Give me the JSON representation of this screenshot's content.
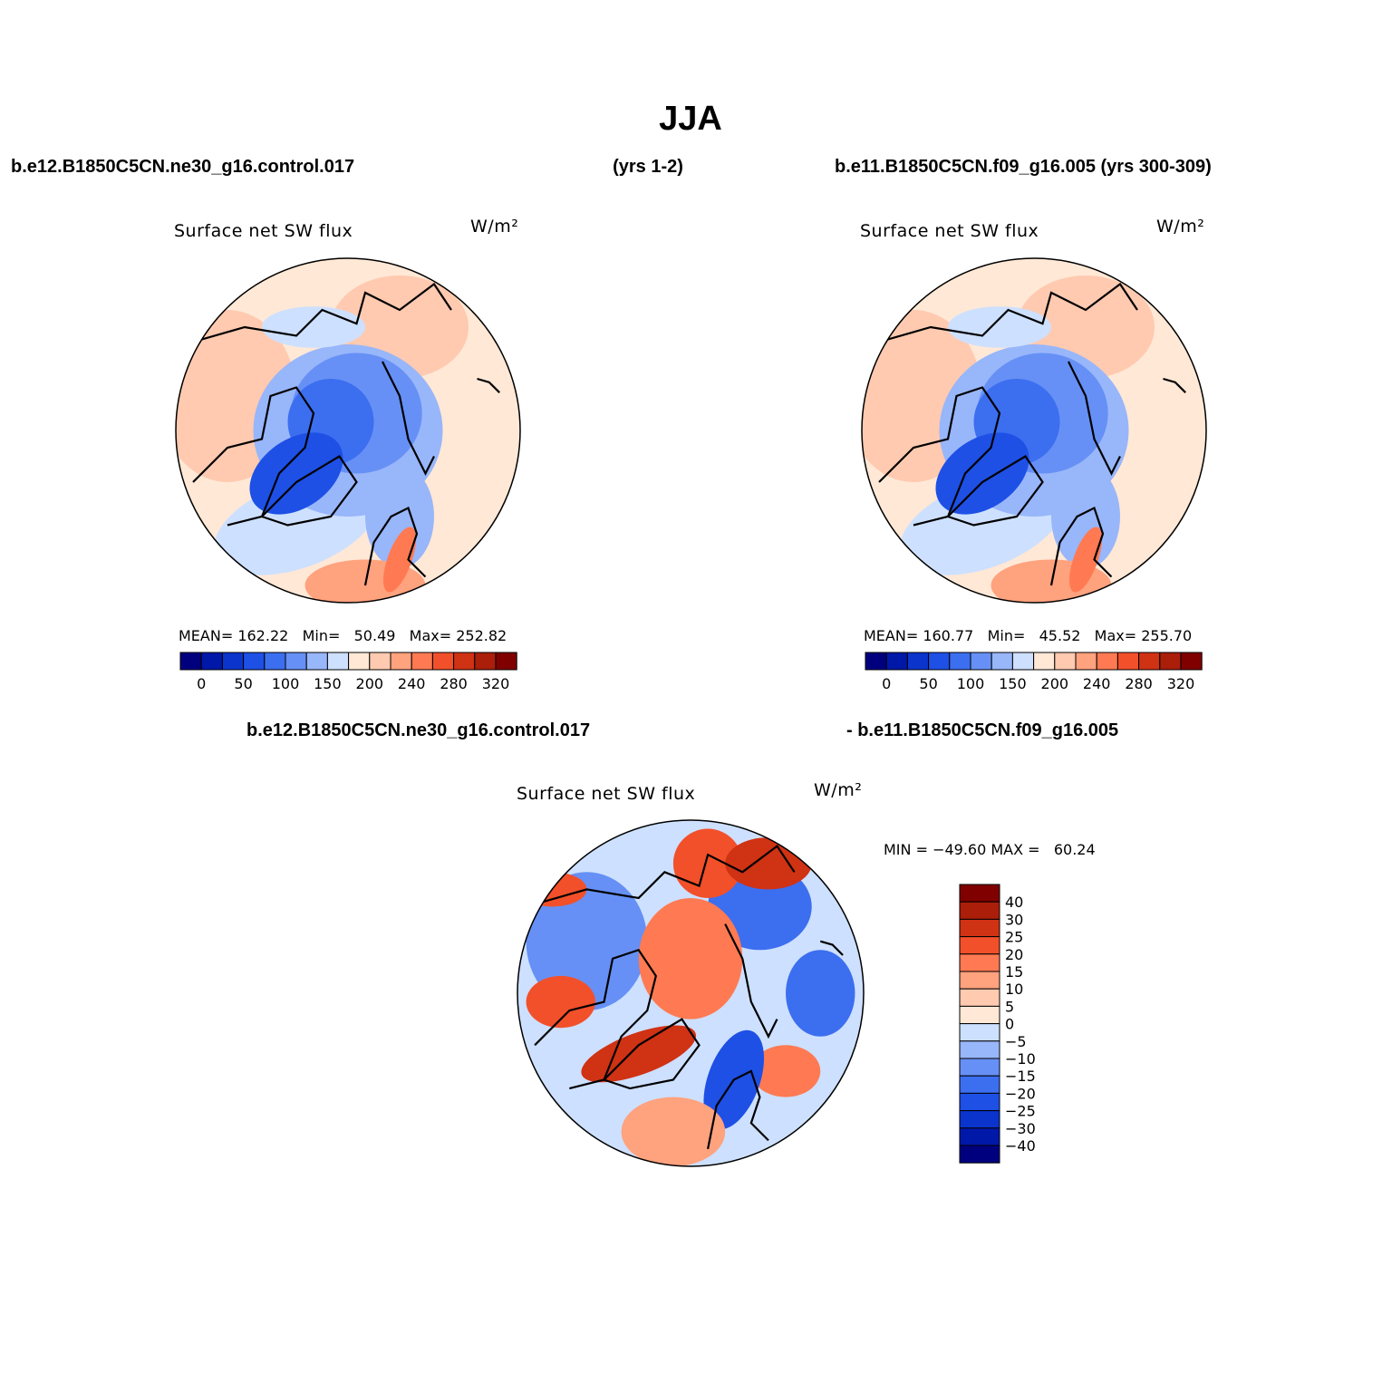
{
  "title": "JJA",
  "header": {
    "left": "b.e12.B1850C5CN.ne30_g16.control.017",
    "center": "(yrs 1-2)",
    "right": "b.e11.B1850C5CN.f09_g16.005 (yrs 300-309)"
  },
  "panels": [
    {
      "title": "Surface net SW flux",
      "units": "W/m²",
      "stats": "MEAN= 162.22   Min=   50.49   Max= 252.82",
      "colorbar_labels": [
        "0",
        "50",
        "100",
        "150",
        "200",
        "240",
        "280",
        "320"
      ]
    },
    {
      "title": "Surface net SW flux",
      "units": "W/m²",
      "stats": "MEAN= 160.77   Min=   45.52   Max= 255.70",
      "colorbar_labels": [
        "0",
        "50",
        "100",
        "150",
        "200",
        "240",
        "280",
        "320"
      ]
    }
  ],
  "difference": {
    "header_left": "b.e12.B1850C5CN.ne30_g16.control.017",
    "header_right": "- b.e11.B1850C5CN.f09_g16.005",
    "title": "Surface net SW flux",
    "units": "W/m²",
    "stats": "MIN = −49.60 MAX =   60.24",
    "colorbar_labels": [
      "40",
      "30",
      "25",
      "20",
      "15",
      "10",
      "5",
      "0",
      "−5",
      "−10",
      "−15",
      "−20",
      "−25",
      "−30",
      "−40"
    ]
  },
  "colorbar_colors": [
    "#00007f",
    "#0018a8",
    "#0a34cc",
    "#1e50e6",
    "#3c6ef0",
    "#6690f5",
    "#98b6fa",
    "#cde0ff",
    "#ffe8d6",
    "#ffcab0",
    "#ffa27e",
    "#ff7a52",
    "#f2502a",
    "#d03214",
    "#aa1e0a",
    "#800000"
  ]
}
